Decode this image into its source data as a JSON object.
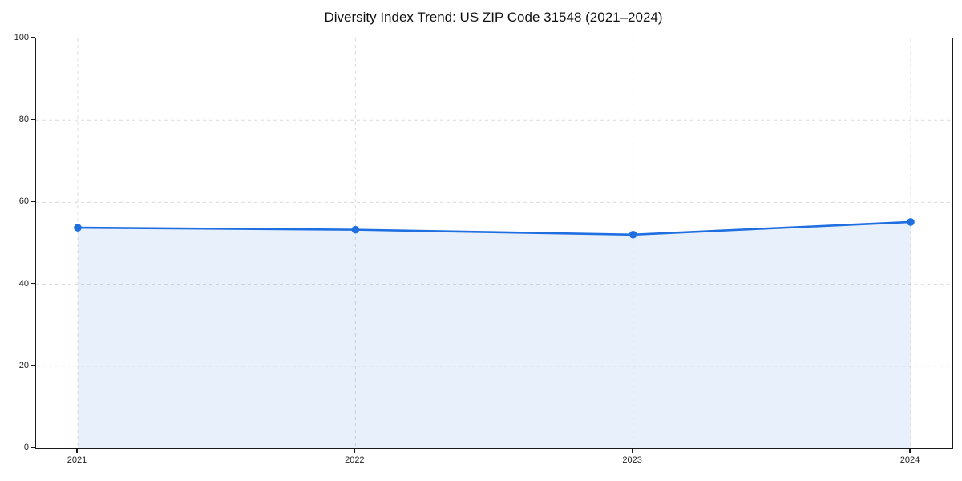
{
  "page": {
    "background": "#ffffff"
  },
  "chart_data": {
    "type": "line",
    "title": "Diversity Index Trend: US ZIP Code 31548 (2021–2024)",
    "x": [
      "2021",
      "2022",
      "2023",
      "2024"
    ],
    "series": [
      {
        "name": "Diversity Index",
        "values": [
          53.8,
          53.3,
          52.1,
          55.2
        ],
        "color": "#1f6fe0",
        "marker": "circle",
        "fill_below": true,
        "fill_opacity": 0.1
      }
    ],
    "xlabel": "",
    "ylabel": "",
    "ylim": [
      0,
      100
    ],
    "yticks": [
      0,
      20,
      40,
      60,
      80,
      100
    ],
    "x_margin_frac": 0.0455,
    "grid": {
      "show": true,
      "style": "dashed",
      "color": "#dcdcdc"
    },
    "spine_color": "#1a1a1a",
    "tick_color": "#1a1a1a",
    "tick_label_color": "#222222",
    "title_color": "#111111",
    "legend": {
      "visible": false
    }
  }
}
